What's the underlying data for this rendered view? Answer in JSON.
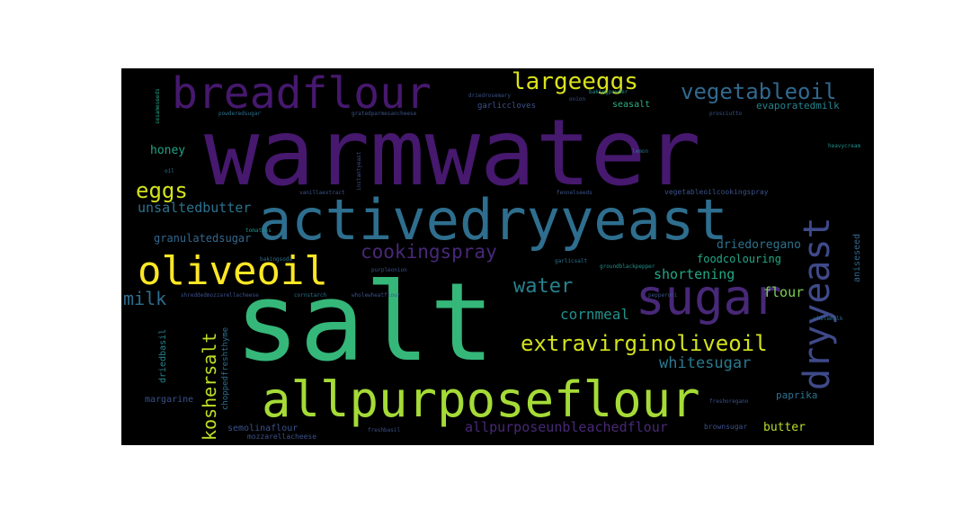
{
  "palette": {
    "purple": "#46186e",
    "indigo": "#3f4a8a",
    "blue": "#31688e",
    "teal": "#26828e",
    "green": "#35b779",
    "lime": "#a5db36",
    "yellow": "#fde725",
    "background": "#000000"
  },
  "words": [
    {
      "text": "warmwater",
      "color": "#46186e"
    },
    {
      "text": "salt",
      "color": "#35b779"
    },
    {
      "text": "activedryyeast",
      "color": "#2e6e8e"
    },
    {
      "text": "allpurposeflour",
      "color": "#a5db36"
    },
    {
      "text": "breadflour",
      "color": "#46186e"
    },
    {
      "text": "sugar",
      "color": "#482878"
    },
    {
      "text": "oliveoil",
      "color": "#fde725"
    },
    {
      "text": "dryyeast",
      "color": "#3f4a8a"
    },
    {
      "text": "extravirginoliveoil",
      "color": "#d2e21b"
    },
    {
      "text": "largeeggs",
      "color": "#d8e219"
    },
    {
      "text": "vegetableoil",
      "color": "#31688e"
    },
    {
      "text": "eggs",
      "color": "#d2e21b"
    },
    {
      "text": "cookingspray",
      "color": "#482878"
    },
    {
      "text": "water",
      "color": "#26828e"
    },
    {
      "text": "koshersalt",
      "color": "#bddf26"
    },
    {
      "text": "whitesugar",
      "color": "#29798e"
    },
    {
      "text": "allpurposeunbleachedflour",
      "color": "#482878"
    },
    {
      "text": "milk",
      "color": "#2e6e8e"
    },
    {
      "text": "cornmeal",
      "color": "#21918c"
    },
    {
      "text": "shortening",
      "color": "#22a884"
    },
    {
      "text": "unsaltedbutter",
      "color": "#2c728e"
    },
    {
      "text": "flour",
      "color": "#7ad151"
    },
    {
      "text": "honey",
      "color": "#20a486"
    },
    {
      "text": "granulatedsugar",
      "color": "#31688e"
    },
    {
      "text": "driedoregano",
      "color": "#2c728e"
    },
    {
      "text": "foodcolouring",
      "color": "#22a884"
    },
    {
      "text": "butter",
      "color": "#b5de2b"
    },
    {
      "text": "paprika",
      "color": "#2c728e"
    },
    {
      "text": "margarine",
      "color": "#3b528b"
    },
    {
      "text": "semolinaflour",
      "color": "#3b528b"
    },
    {
      "text": "mozzarellacheese",
      "color": "#3b528b"
    },
    {
      "text": "evaporatedmilk",
      "color": "#26828e"
    },
    {
      "text": "seasalt",
      "color": "#2ab07f"
    },
    {
      "text": "garliccloves",
      "color": "#3b528b"
    },
    {
      "text": "driedbasil",
      "color": "#26828e"
    },
    {
      "text": "choppedfreshthyme",
      "color": "#2e6e8e"
    },
    {
      "text": "aniseseed",
      "color": "#31688e"
    },
    {
      "text": "brownsugar",
      "color": "#3b528b"
    },
    {
      "text": "vegetableoilcookingspray",
      "color": "#3b528b"
    },
    {
      "text": "sesameseeds",
      "color": "#22a884"
    },
    {
      "text": "powderedsugar",
      "color": "#2c728e"
    },
    {
      "text": "gratedparmesancheese",
      "color": "#3b528b"
    },
    {
      "text": "driedrosemary",
      "color": "#3b528b"
    },
    {
      "text": "prosciutto",
      "color": "#3b528b"
    },
    {
      "text": "heavycream",
      "color": "#21918c"
    },
    {
      "text": "lemon",
      "color": "#2c728e"
    },
    {
      "text": "oil",
      "color": "#2c728e"
    },
    {
      "text": "vanillaextract",
      "color": "#3b528b"
    },
    {
      "text": "fennelseeds",
      "color": "#3b528b"
    },
    {
      "text": "wholemilk",
      "color": "#2c728e"
    },
    {
      "text": "garlicsalt",
      "color": "#2c728e"
    },
    {
      "text": "groundblackpepper",
      "color": "#21918c"
    },
    {
      "text": "purpleonion",
      "color": "#3b528b"
    },
    {
      "text": "freshoregano",
      "color": "#3b528b"
    },
    {
      "text": "wholewheatflour",
      "color": "#3b528b"
    },
    {
      "text": "shreddedmozzarellacheese",
      "color": "#3b528b"
    },
    {
      "text": "cornstarch",
      "color": "#2c728e"
    },
    {
      "text": "bakingpowder",
      "color": "#21918c"
    },
    {
      "text": "freshbasil",
      "color": "#3b528b"
    },
    {
      "text": "instantyeast",
      "color": "#3b528b"
    },
    {
      "text": "bakingsoda",
      "color": "#2c728e"
    },
    {
      "text": "onion",
      "color": "#3b528b"
    },
    {
      "text": "tomatoes",
      "color": "#21918c"
    },
    {
      "text": "pepperoni",
      "color": "#3b528b"
    }
  ]
}
